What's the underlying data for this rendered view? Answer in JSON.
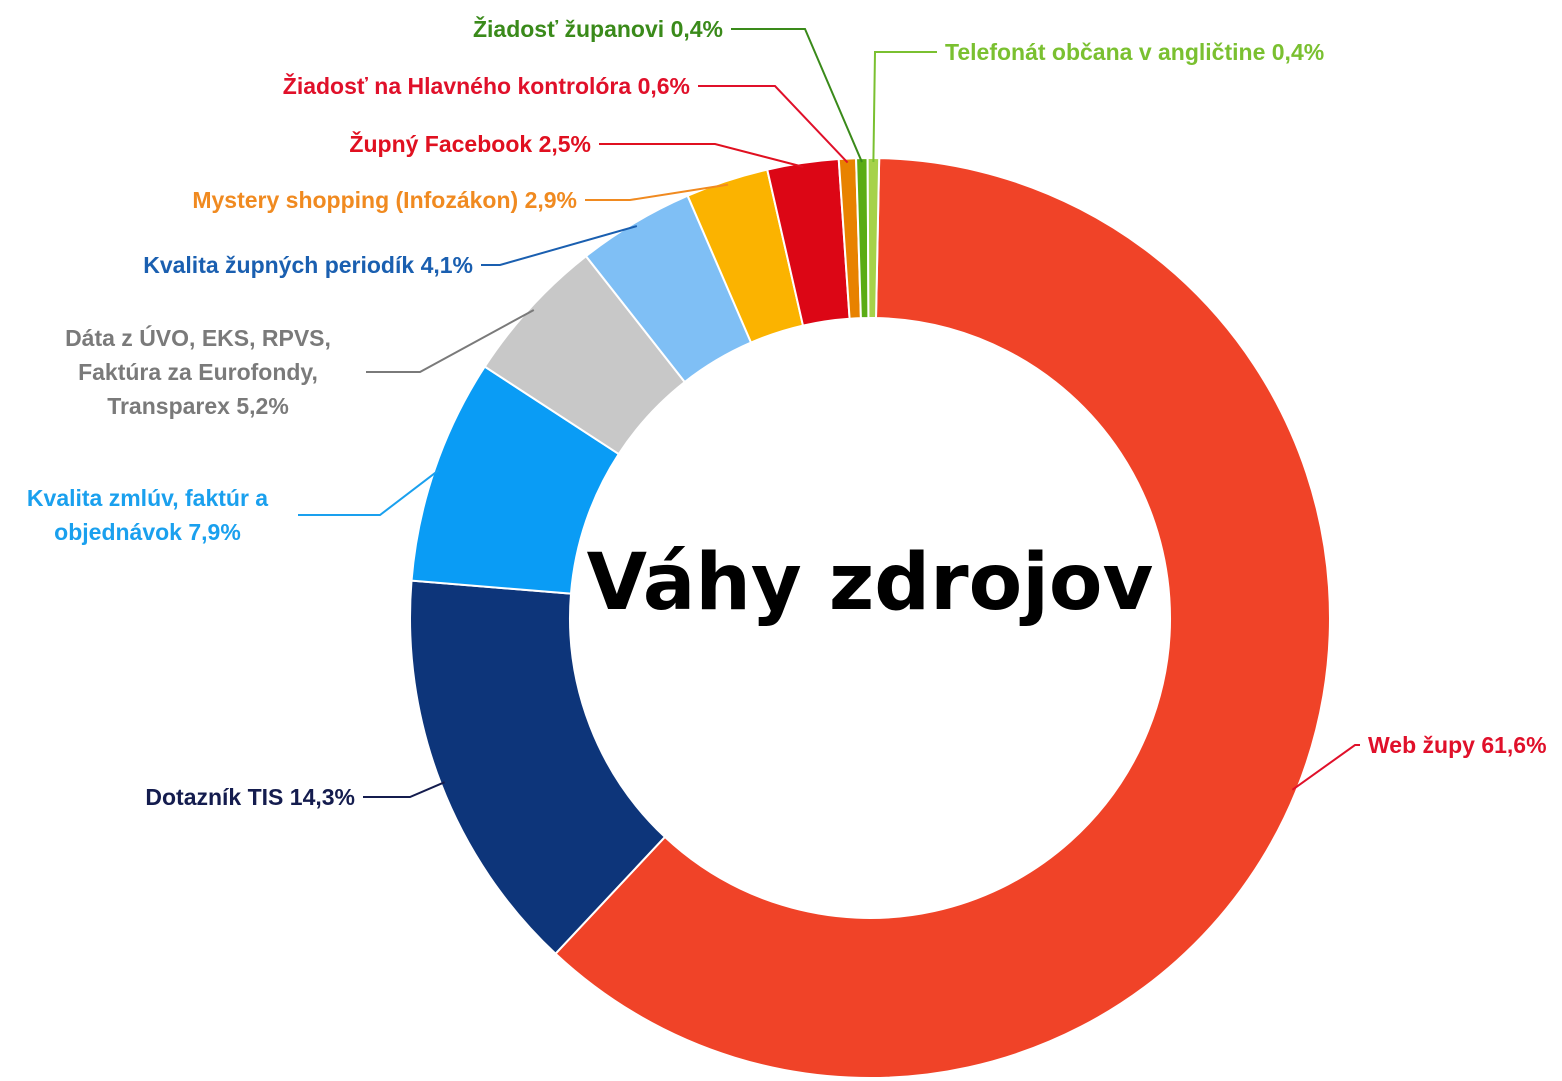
{
  "chart_data": {
    "type": "donut",
    "title": "Váhy zdrojov",
    "categories": [
      "Web župy",
      "Dotazník TIS",
      "Kvalita zmlúv, faktúr a objednávok",
      "Dáta z ÚVO, EKS, RPVS, Faktúra za Eurofondy, Transparex",
      "Kvalita župných periodík",
      "Mystery shopping (Infozákon)",
      "Župný Facebook",
      "Žiadosť na Hlavného kontrolóra",
      "Žiadosť županovi",
      "Telefonát občana v angličtine"
    ],
    "values": [
      61.6,
      14.3,
      7.9,
      5.2,
      4.1,
      2.9,
      2.5,
      0.6,
      0.4,
      0.4
    ],
    "value_labels": [
      "61,6%",
      "14,3%",
      "7,9%",
      "5,2%",
      "4,1%",
      "2,9%",
      "2,5%",
      "0,6%",
      "0,4%",
      "0,4%"
    ],
    "colors": [
      "#f04328",
      "#0d357a",
      "#0a9cf5",
      "#c8c8c8",
      "#7fbff5",
      "#fbb300",
      "#dc0615",
      "#e88200",
      "#5aac14",
      "#a6d24a"
    ],
    "label_colors": [
      "#e0102a",
      "#141c4e",
      "#1aa0ee",
      "#7a7a7a",
      "#1a5fb0",
      "#f08a20",
      "#e01020",
      "#e0102a",
      "#3a8a1a",
      "#7ac030"
    ]
  }
}
